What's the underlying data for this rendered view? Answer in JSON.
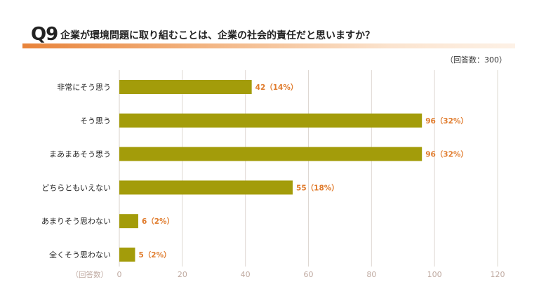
{
  "question": {
    "number": "Q9",
    "text": "企業が環境問題に取り組むことは、企業の社会的責任だと思いますか？"
  },
  "respondents_note": "（回答数：300）",
  "axis_note": "（回答数）",
  "colors": {
    "bar": "#a39c0a",
    "label": "#e07b2c",
    "grid": "#ded8d2",
    "tick": "#bfa9a0",
    "accent": "#e8833a"
  },
  "chart_data": {
    "type": "bar",
    "orientation": "horizontal",
    "categories": [
      "非常にそう思う",
      "そう思う",
      "まあまあそう思う",
      "どちらともいえない",
      "あまりそう思わない",
      "全くそう思わない"
    ],
    "values": [
      42,
      96,
      96,
      55,
      6,
      5
    ],
    "data_labels": [
      "42（14%）",
      "96（32%）",
      "96（32%）",
      "55（18%）",
      "6（2%）",
      "5（2%）"
    ],
    "xlim": [
      0,
      120
    ],
    "xticks": [
      0,
      20,
      40,
      60,
      80,
      100,
      120
    ],
    "grid": true,
    "legend": "none"
  }
}
